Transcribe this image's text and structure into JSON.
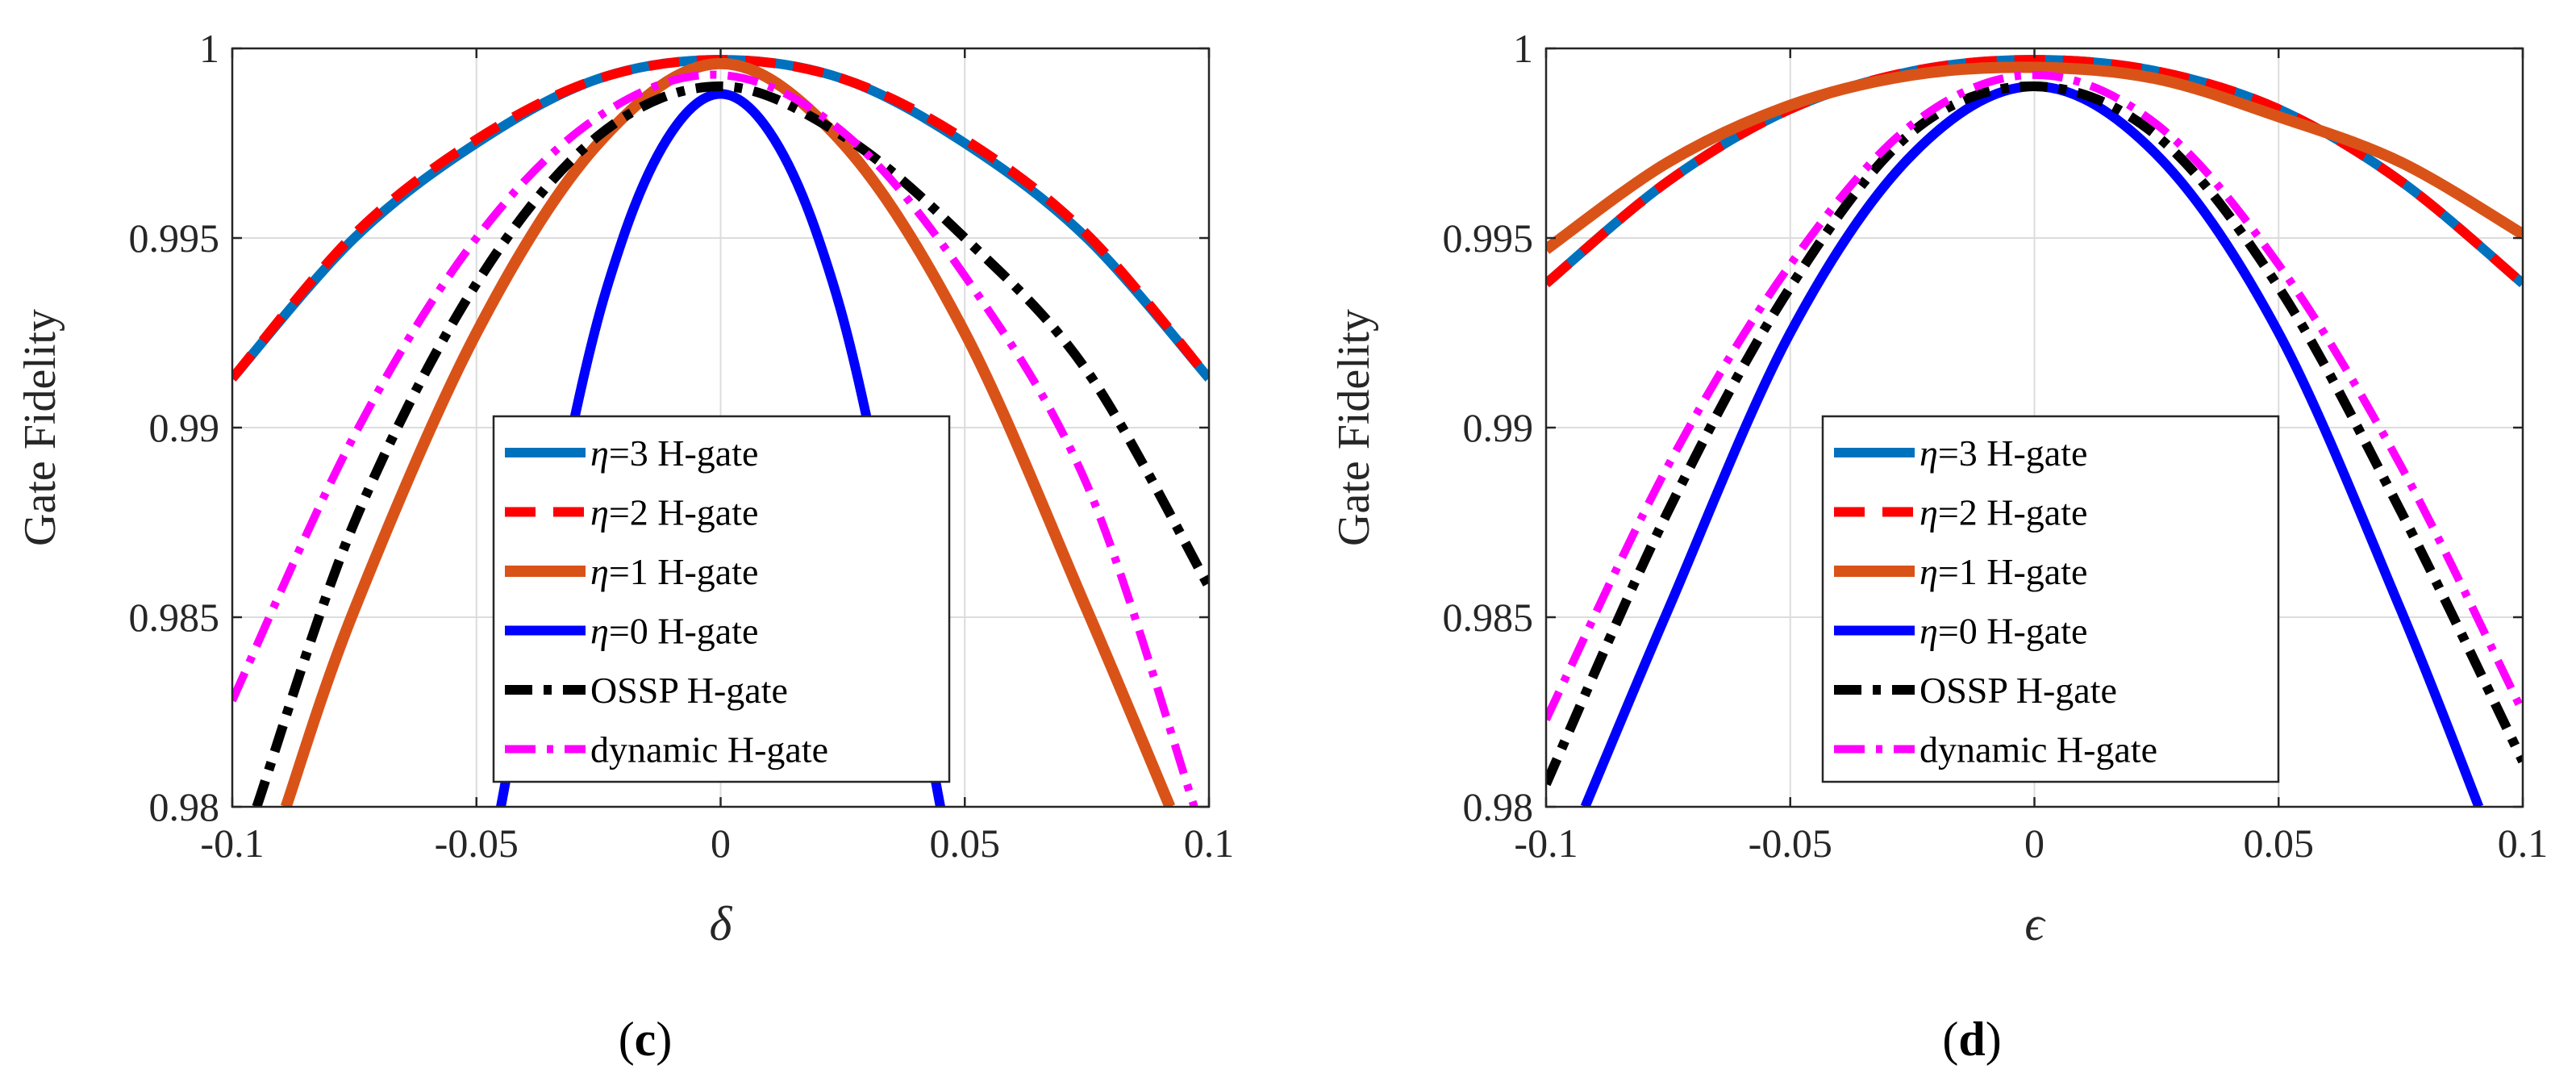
{
  "colors": {
    "eta3": "#0072BD",
    "eta2": "#FF0000",
    "eta1": "#D95319",
    "eta0": "#0000FF",
    "ossp": "#000000",
    "dynamic": "#FF00FF"
  },
  "chart_data": [
    {
      "type": "line",
      "panel": "(c)",
      "caption_letter": "c",
      "xlabel": "δ",
      "ylabel": "Gate Fidelity",
      "xlim": [
        -0.1,
        0.1
      ],
      "ylim": [
        0.98,
        1.0
      ],
      "xticks": [
        -0.1,
        -0.05,
        0,
        0.05,
        0.1
      ],
      "xtick_labels": [
        "-0.1",
        "-0.05",
        "0",
        "0.05",
        "0.1"
      ],
      "yticks": [
        0.98,
        0.985,
        0.99,
        0.995,
        1.0
      ],
      "ytick_labels": [
        "0.98",
        "0.985",
        "0.99",
        "0.995",
        "1"
      ],
      "grid": true,
      "legend_position": "bottom-center",
      "legend": [
        {
          "eta": "η",
          "label": "=3 H-gate"
        },
        {
          "eta": "η",
          "label": "=2 H-gate"
        },
        {
          "eta": "η",
          "label": "=1 H-gate"
        },
        {
          "eta": "η",
          "label": "=0 H-gate"
        },
        {
          "eta": "",
          "label": "OSSP H-gate"
        },
        {
          "eta": "",
          "label": "dynamic H-gate"
        }
      ],
      "series": [
        {
          "name": "η=3 H-gate",
          "style": "eta3",
          "x": [
            -0.1,
            -0.075,
            -0.05,
            -0.025,
            0,
            0.025,
            0.05,
            0.075,
            0.1
          ],
          "y": [
            0.9913,
            0.995,
            0.9975,
            0.9992,
            0.9997,
            0.9992,
            0.9975,
            0.995,
            0.9913
          ]
        },
        {
          "name": "η=2 H-gate",
          "style": "eta2",
          "x": [
            -0.1,
            -0.075,
            -0.05,
            -0.025,
            0,
            0.025,
            0.05,
            0.075,
            0.1
          ],
          "y": [
            0.9913,
            0.9951,
            0.9976,
            0.9992,
            0.9997,
            0.9992,
            0.9976,
            0.9951,
            0.9913
          ]
        },
        {
          "name": "η=1 H-gate",
          "style": "eta1",
          "x": [
            -0.089,
            -0.075,
            -0.05,
            -0.025,
            0,
            0.025,
            0.05,
            0.075,
            0.092
          ],
          "y": [
            0.98,
            0.9852,
            0.9925,
            0.9975,
            0.9996,
            0.9975,
            0.9925,
            0.9852,
            0.98
          ]
        },
        {
          "name": "η=0 H-gate",
          "style": "eta0",
          "x": [
            -0.045,
            -0.03,
            -0.02,
            -0.01,
            0,
            0.01,
            0.02,
            0.03,
            0.045
          ],
          "y": [
            0.98,
            0.9902,
            0.995,
            0.9978,
            0.9988,
            0.9978,
            0.995,
            0.9902,
            0.98
          ]
        },
        {
          "name": "OSSP H-gate",
          "style": "ossp",
          "x": [
            -0.095,
            -0.075,
            -0.05,
            -0.025,
            0,
            0.025,
            0.05,
            0.075,
            0.1
          ],
          "y": [
            0.98,
            0.9875,
            0.9938,
            0.9977,
            0.999,
            0.9977,
            0.995,
            0.9915,
            0.9858
          ]
        },
        {
          "name": "dynamic H-gate",
          "style": "dynamic",
          "x": [
            -0.1,
            -0.075,
            -0.05,
            -0.025,
            0,
            0.025,
            0.05,
            0.075,
            0.097
          ],
          "y": [
            0.9828,
            0.9898,
            0.995,
            0.9982,
            0.9993,
            0.9978,
            0.994,
            0.9885,
            0.98
          ]
        }
      ]
    },
    {
      "type": "line",
      "panel": "(d)",
      "caption_letter": "d",
      "xlabel": "ϵ",
      "ylabel": "Gate Fidelity",
      "xlim": [
        -0.1,
        0.1
      ],
      "ylim": [
        0.98,
        1.0
      ],
      "xticks": [
        -0.1,
        -0.05,
        0,
        0.05,
        0.1
      ],
      "xtick_labels": [
        "-0.1",
        "-0.05",
        "0",
        "0.05",
        "0.1"
      ],
      "yticks": [
        0.98,
        0.985,
        0.99,
        0.995,
        1.0
      ],
      "ytick_labels": [
        "0.98",
        "0.985",
        "0.99",
        "0.995",
        "1"
      ],
      "grid": true,
      "legend_position": "bottom-center",
      "legend": [
        {
          "eta": "η",
          "label": "=3 H-gate"
        },
        {
          "eta": "η",
          "label": "=2 H-gate"
        },
        {
          "eta": "η",
          "label": "=1 H-gate"
        },
        {
          "eta": "η",
          "label": "=0 H-gate"
        },
        {
          "eta": "",
          "label": "OSSP H-gate"
        },
        {
          "eta": "",
          "label": "dynamic H-gate"
        }
      ],
      "series": [
        {
          "name": "η=3 H-gate",
          "style": "eta3",
          "x": [
            -0.1,
            -0.075,
            -0.05,
            -0.025,
            0,
            0.025,
            0.05,
            0.075,
            0.1
          ],
          "y": [
            0.9938,
            0.9965,
            0.9984,
            0.9994,
            0.9997,
            0.9994,
            0.9984,
            0.9965,
            0.9938
          ]
        },
        {
          "name": "η=2 H-gate",
          "style": "eta2",
          "x": [
            -0.1,
            -0.075,
            -0.05,
            -0.025,
            0,
            0.025,
            0.05,
            0.075,
            0.1
          ],
          "y": [
            0.9938,
            0.9965,
            0.9984,
            0.9994,
            0.9997,
            0.9994,
            0.9984,
            0.9965,
            0.9938
          ]
        },
        {
          "name": "η=1 H-gate",
          "style": "eta1",
          "x": [
            -0.1,
            -0.075,
            -0.05,
            -0.025,
            0,
            0.025,
            0.05,
            0.075,
            0.1
          ],
          "y": [
            0.9947,
            0.997,
            0.9985,
            0.9993,
            0.9995,
            0.9992,
            0.9982,
            0.997,
            0.9951
          ]
        },
        {
          "name": "η=0 H-gate",
          "style": "eta0",
          "x": [
            -0.092,
            -0.075,
            -0.05,
            -0.025,
            0,
            0.025,
            0.05,
            0.075,
            0.091
          ],
          "y": [
            0.98,
            0.9852,
            0.9925,
            0.9972,
            0.999,
            0.9972,
            0.9925,
            0.9852,
            0.98
          ]
        },
        {
          "name": "OSSP H-gate",
          "style": "ossp",
          "x": [
            -0.1,
            -0.075,
            -0.05,
            -0.025,
            0,
            0.025,
            0.05,
            0.075,
            0.1
          ],
          "y": [
            0.9806,
            0.9878,
            0.9937,
            0.9978,
            0.999,
            0.9977,
            0.9937,
            0.9878,
            0.9812
          ]
        },
        {
          "name": "dynamic H-gate",
          "style": "dynamic",
          "x": [
            -0.1,
            -0.075,
            -0.05,
            -0.025,
            0,
            0.025,
            0.05,
            0.075,
            0.1
          ],
          "y": [
            0.9823,
            0.989,
            0.9943,
            0.998,
            0.9993,
            0.998,
            0.9943,
            0.989,
            0.9825
          ]
        }
      ]
    }
  ]
}
